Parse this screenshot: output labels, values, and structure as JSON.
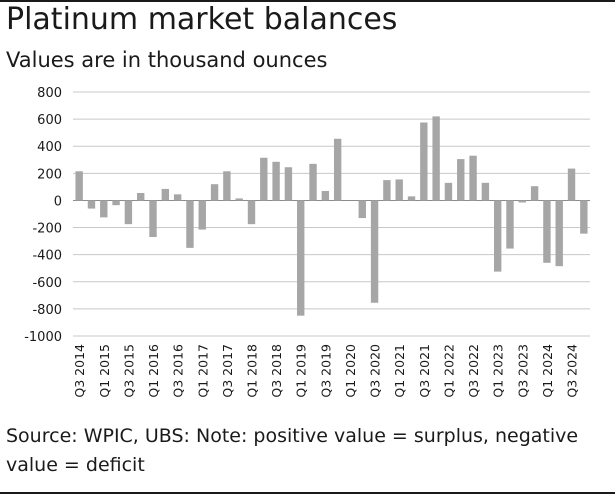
{
  "title": "Platinum market balances",
  "subtitle": "Values are in thousand ounces",
  "source": "Source: WPIC, UBS: Note: positive value = surplus, negative value = deficit",
  "colors": {
    "bar": "#a6a6a6",
    "grid": "#c8c8c8",
    "axis": "#8c8c8c",
    "text": "#1a1a1a"
  },
  "chart_data": {
    "type": "bar",
    "title": "Platinum market balances",
    "subtitle": "Values are in thousand ounces",
    "xlabel": "",
    "ylabel": "",
    "ylim": [
      -1000,
      800
    ],
    "yticks": [
      800,
      600,
      400,
      200,
      0,
      -200,
      -400,
      -600,
      -800,
      -1000
    ],
    "grid": true,
    "legend": "none",
    "categories": [
      "Q3 2014",
      "Q4 2014",
      "Q1 2015",
      "Q2 2015",
      "Q3 2015",
      "Q4 2015",
      "Q1 2016",
      "Q2 2016",
      "Q3 2016",
      "Q4 2016",
      "Q1 2017",
      "Q2 2017",
      "Q3 2017",
      "Q4 2017",
      "Q1 2018",
      "Q2 2018",
      "Q3 2018",
      "Q4 2018",
      "Q1 2019",
      "Q2 2019",
      "Q3 2019",
      "Q4 2019",
      "Q1 2020",
      "Q2 2020",
      "Q3 2020",
      "Q4 2020",
      "Q1 2021",
      "Q2 2021",
      "Q3 2021",
      "Q4 2021",
      "Q1 2022",
      "Q2 2022",
      "Q3 2022",
      "Q4 2022",
      "Q1 2023",
      "Q2 2023",
      "Q3 2023",
      "Q4 2023",
      "Q1 2024",
      "Q2 2024",
      "Q3 2024",
      "Q4 2024"
    ],
    "tick_labels": [
      "Q3 2014",
      "",
      "Q1 2015",
      "",
      "Q3 2015",
      "",
      "Q1 2016",
      "",
      "Q3 2016",
      "",
      "Q1 2017",
      "",
      "Q3 2017",
      "",
      "Q1 2018",
      "",
      "Q3 2018",
      "",
      "Q1 2019",
      "",
      "Q3 2019",
      "",
      "Q1 2020",
      "",
      "Q3 2020",
      "",
      "Q1 2021",
      "",
      "Q3 2021",
      "",
      "Q1 2022",
      "",
      "Q3 2022",
      "",
      "Q1 2023",
      "",
      "Q3 2023",
      "",
      "Q1 2024",
      "",
      "Q3 2024",
      ""
    ],
    "values": [
      215,
      -60,
      -125,
      -35,
      -175,
      55,
      -270,
      85,
      45,
      -350,
      -215,
      120,
      215,
      15,
      -175,
      315,
      285,
      245,
      -850,
      270,
      70,
      455,
      0,
      -130,
      -755,
      150,
      155,
      30,
      575,
      620,
      130,
      305,
      330,
      130,
      -525,
      -355,
      -15,
      105,
      -460,
      -485,
      235,
      -245
    ]
  }
}
